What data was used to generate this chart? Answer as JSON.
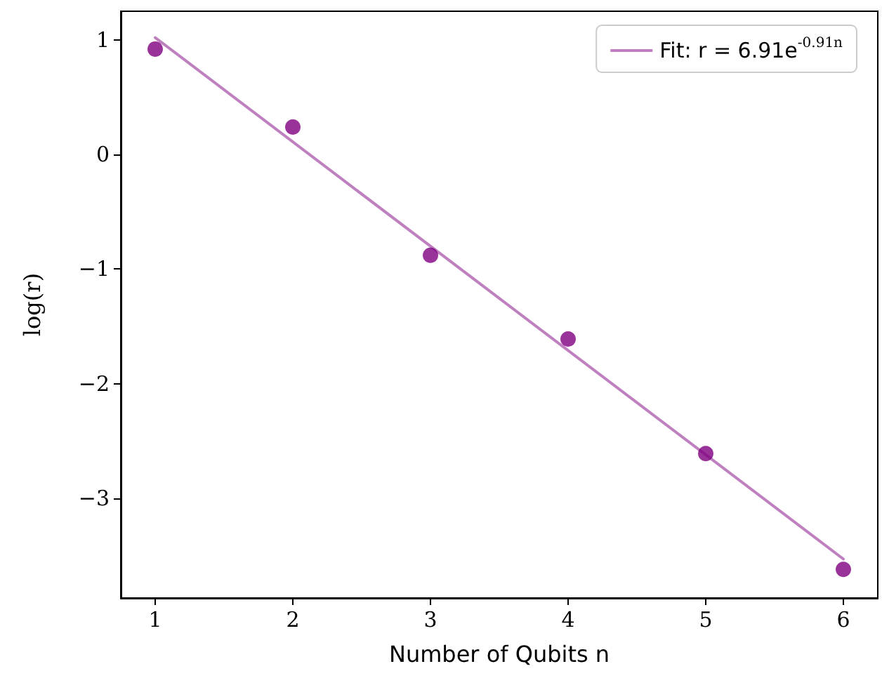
{
  "chart_data": {
    "type": "scatter",
    "xlabel": "Number of Qubits n",
    "ylabel": "log(r)",
    "x": [
      1,
      2,
      3,
      4,
      5,
      6
    ],
    "series": [
      {
        "color": "#800080",
        "values": [
          0.92,
          0.24,
          -0.88,
          -1.61,
          -2.61,
          -3.62
        ],
        "marker": "circle"
      },
      {
        "type": "line",
        "name": "Fit: r = 6.91e$^{-0.91n}$",
        "color": "#bf80bf",
        "x": [
          1,
          6
        ],
        "values": [
          1.02,
          -3.53
        ],
        "marker": "none",
        "line_style": "solid"
      }
    ],
    "xlim": [
      0.75,
      6.25
    ],
    "xticks": [
      1,
      2,
      3,
      4,
      5,
      6
    ],
    "ylim": [
      -3.87,
      1.25
    ],
    "yticks": [
      -3,
      -2,
      -1,
      0,
      1
    ],
    "grid": false,
    "legend": "top right"
  }
}
